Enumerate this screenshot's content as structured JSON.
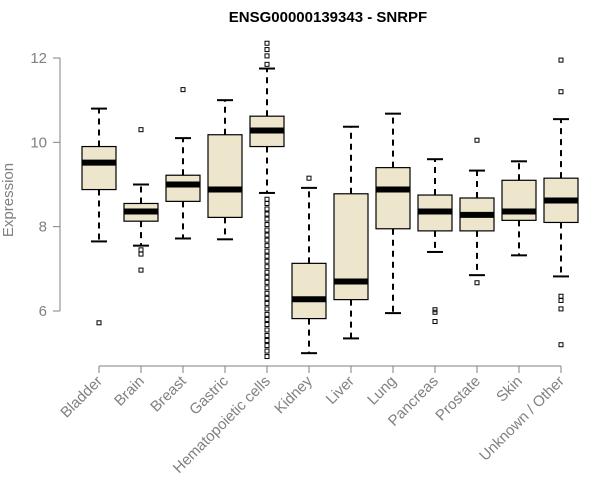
{
  "chart_data": {
    "type": "boxplot",
    "title": "ENSG00000139343 - SNRPF",
    "xlabel": "",
    "ylabel": "Expression",
    "ylim": [
      4.7,
      12.4
    ],
    "yticks": [
      6,
      8,
      10,
      12
    ],
    "grid": false,
    "colors": {
      "box_fill": "#EDE6CC",
      "box_stroke": "#000000",
      "axis": "#808080",
      "tick_text": "#808080"
    },
    "categories": [
      "Bladder",
      "Brain",
      "Breast",
      "Gastric",
      "Hematopoietic cells",
      "Kidney",
      "Liver",
      "Lung",
      "Pancreas",
      "Prostate",
      "Skin",
      "Unknown / Other"
    ],
    "series": [
      {
        "name": "Bladder",
        "whisker_low": 7.65,
        "q1": 8.88,
        "median": 9.52,
        "q3": 9.9,
        "whisker_high": 10.8,
        "outliers": [
          5.72
        ]
      },
      {
        "name": "Brain",
        "whisker_low": 7.55,
        "q1": 8.13,
        "median": 8.36,
        "q3": 8.55,
        "whisker_high": 9.0,
        "outliers": [
          6.97,
          7.35,
          7.45,
          10.3
        ]
      },
      {
        "name": "Breast",
        "whisker_low": 7.72,
        "q1": 8.6,
        "median": 9.0,
        "q3": 9.22,
        "whisker_high": 10.1,
        "outliers": [
          11.25
        ]
      },
      {
        "name": "Gastric",
        "whisker_low": 7.7,
        "q1": 8.22,
        "median": 8.88,
        "q3": 10.18,
        "whisker_high": 11.0,
        "outliers": []
      },
      {
        "name": "Hematopoietic cells",
        "whisker_low": 8.8,
        "q1": 9.9,
        "median": 10.28,
        "q3": 10.62,
        "whisker_high": 11.75,
        "outliers": [
          12.35,
          12.2,
          12.05,
          11.85,
          4.92,
          5.05,
          5.18,
          5.3,
          5.42,
          5.55,
          5.68,
          5.8,
          5.92,
          6.05,
          6.18,
          6.3,
          6.42,
          6.55,
          6.68,
          6.8,
          6.92,
          7.05,
          7.18,
          7.3,
          7.42,
          7.55,
          7.68,
          7.8,
          7.92,
          8.05,
          8.18,
          8.3,
          8.42,
          8.55,
          8.65
        ]
      },
      {
        "name": "Kidney",
        "whisker_low": 5.0,
        "q1": 5.82,
        "median": 6.28,
        "q3": 7.13,
        "whisker_high": 8.92,
        "outliers": [
          9.15
        ]
      },
      {
        "name": "Liver",
        "whisker_low": 5.35,
        "q1": 6.27,
        "median": 6.7,
        "q3": 8.78,
        "whisker_high": 10.37,
        "outliers": []
      },
      {
        "name": "Lung",
        "whisker_low": 5.95,
        "q1": 7.95,
        "median": 8.88,
        "q3": 9.4,
        "whisker_high": 10.68,
        "outliers": []
      },
      {
        "name": "Pancreas",
        "whisker_low": 7.4,
        "q1": 7.9,
        "median": 8.36,
        "q3": 8.75,
        "whisker_high": 9.6,
        "outliers": [
          5.75,
          5.97,
          6.03
        ]
      },
      {
        "name": "Prostate",
        "whisker_low": 6.85,
        "q1": 7.9,
        "median": 8.28,
        "q3": 8.68,
        "whisker_high": 9.33,
        "outliers": [
          6.67,
          10.05
        ]
      },
      {
        "name": "Skin",
        "whisker_low": 7.32,
        "q1": 8.15,
        "median": 8.36,
        "q3": 9.1,
        "whisker_high": 9.55,
        "outliers": []
      },
      {
        "name": "Unknown / Other",
        "whisker_low": 6.82,
        "q1": 8.1,
        "median": 8.62,
        "q3": 9.15,
        "whisker_high": 10.55,
        "outliers": [
          5.2,
          6.05,
          6.25,
          6.35,
          11.2,
          11.95
        ]
      }
    ]
  }
}
